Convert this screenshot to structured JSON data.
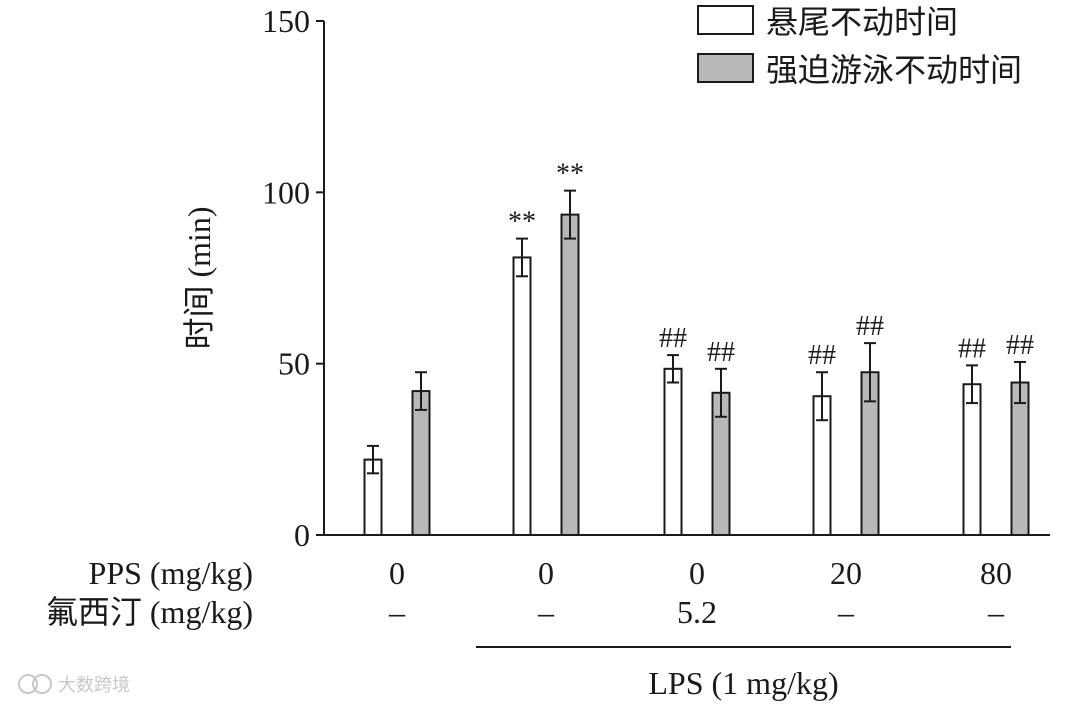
{
  "chart_data": {
    "type": "bar",
    "ylabel": "时间 (min)",
    "ylim": [
      0,
      150
    ],
    "yticks": [
      0,
      50,
      100,
      150
    ],
    "legend_position": "top-right",
    "series": [
      {
        "name": "悬尾不动时间",
        "color": "#ffffff",
        "values": [
          22,
          81,
          48.5,
          40.5,
          44
        ],
        "errors": [
          4,
          5.5,
          4,
          7,
          5.5
        ],
        "annotations": [
          "",
          "**",
          "##",
          "##",
          "##"
        ]
      },
      {
        "name": "强迫游泳不动时间",
        "color": "#b8b8b8",
        "values": [
          42,
          93.5,
          41.5,
          47.5,
          44.5
        ],
        "errors": [
          5.5,
          7,
          7,
          8.5,
          6
        ],
        "annotations": [
          "",
          "**",
          "##",
          "##",
          "##"
        ]
      }
    ],
    "rows": [
      {
        "label": "PPS (mg/kg)",
        "values": [
          "0",
          "0",
          "0",
          "20",
          "80"
        ]
      },
      {
        "label": "氟西汀 (mg/kg)",
        "values": [
          "–",
          "–",
          "5.2",
          "–",
          "–"
        ]
      }
    ],
    "group_label": {
      "text": "LPS (1 mg/kg)",
      "from_group": 1,
      "to_group": 4
    }
  },
  "watermark": "大数跨境"
}
